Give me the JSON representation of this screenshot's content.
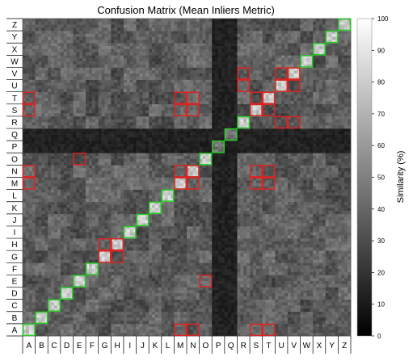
{
  "chart_data": {
    "type": "heatmap",
    "title": "Confusion Matrix (Mean Inliers Metric)",
    "x_labels": [
      "A",
      "B",
      "C",
      "D",
      "E",
      "F",
      "G",
      "H",
      "I",
      "J",
      "K",
      "L",
      "M",
      "N",
      "O",
      "P",
      "Q",
      "R",
      "S",
      "T",
      "U",
      "V",
      "W",
      "X",
      "Y",
      "Z"
    ],
    "y_labels": [
      "A",
      "B",
      "C",
      "D",
      "E",
      "F",
      "G",
      "H",
      "I",
      "J",
      "K",
      "L",
      "M",
      "N",
      "O",
      "P",
      "Q",
      "R",
      "S",
      "T",
      "U",
      "V",
      "W",
      "X",
      "Y",
      "Z"
    ],
    "colorbar": {
      "label": "Similarity (%)",
      "range": [
        0,
        100
      ],
      "ticks": [
        "0",
        "10",
        "20",
        "30",
        "40",
        "50",
        "60",
        "70",
        "80",
        "90",
        "100"
      ],
      "colormap": "gray"
    },
    "row_dark_classes": [
      "P",
      "Q"
    ],
    "col_dark_classes": [
      "P",
      "Q"
    ],
    "green_boxes": [
      "A-A",
      "B-B",
      "C-C",
      "D-D",
      "E-E",
      "F-F",
      "G-G",
      "H-H",
      "I-I",
      "J-J",
      "K-K",
      "L-L",
      "M-M",
      "N-N",
      "O-O",
      "P-P",
      "Q-Q",
      "R-R",
      "S-S",
      "T-T",
      "U-U",
      "V-V",
      "W-W",
      "X-X",
      "Y-Y",
      "Z-Z"
    ],
    "red_boxes": [
      {
        "row": "A",
        "cols": [
          "M",
          "N",
          "S",
          "T"
        ]
      },
      {
        "row": "E",
        "cols": [
          "O"
        ]
      },
      {
        "row": "G",
        "cols": [
          "G",
          "H"
        ]
      },
      {
        "row": "H",
        "cols": [
          "G",
          "H"
        ]
      },
      {
        "row": "M",
        "cols": [
          "A",
          "M",
          "N",
          "S",
          "T"
        ]
      },
      {
        "row": "N",
        "cols": [
          "A",
          "M",
          "N",
          "S",
          "T"
        ]
      },
      {
        "row": "O",
        "cols": [
          "E"
        ]
      },
      {
        "row": "R",
        "cols": [
          "U",
          "V"
        ]
      },
      {
        "row": "S",
        "cols": [
          "A",
          "M",
          "N",
          "S",
          "T"
        ]
      },
      {
        "row": "T",
        "cols": [
          "A",
          "M",
          "N",
          "S",
          "T"
        ]
      },
      {
        "row": "U",
        "cols": [
          "R",
          "U",
          "V"
        ]
      },
      {
        "row": "V",
        "cols": [
          "R",
          "U",
          "V"
        ]
      }
    ],
    "colors": {
      "green": "#22cc22",
      "red": "#dd2222"
    }
  }
}
